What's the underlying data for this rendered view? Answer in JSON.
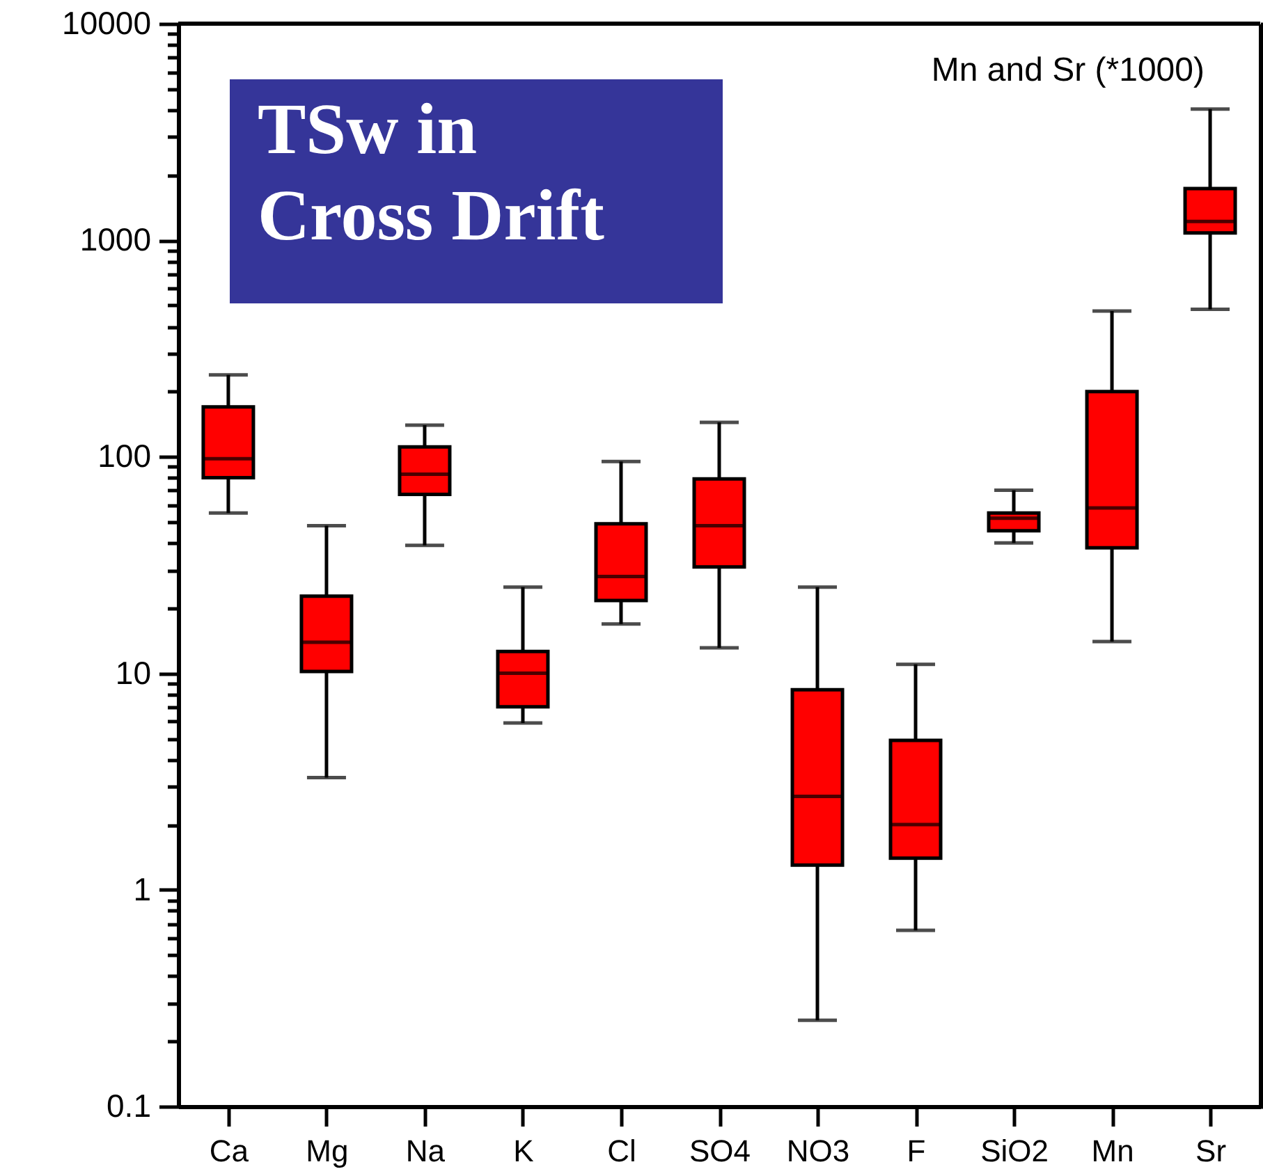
{
  "chart_data": {
    "type": "box",
    "categories": [
      "Ca",
      "Mg",
      "Na",
      "K",
      "Cl",
      "SO4",
      "NO3",
      "F",
      "SiO2",
      "Mn",
      "Sr"
    ],
    "series": [
      {
        "color": "#ff0000",
        "boxes": [
          {
            "low": 55,
            "q1": 80,
            "median": 98,
            "q3": 170,
            "high": 239
          },
          {
            "low": 3.3,
            "q1": 10.2,
            "median": 13.9,
            "q3": 22.7,
            "high": 48
          },
          {
            "low": 39,
            "q1": 67,
            "median": 83,
            "q3": 111,
            "high": 140
          },
          {
            "low": 5.9,
            "q1": 7,
            "median": 10,
            "q3": 12.6,
            "high": 25
          },
          {
            "low": 16.9,
            "q1": 21.7,
            "median": 28,
            "q3": 49,
            "high": 95
          },
          {
            "low": 13.1,
            "q1": 31,
            "median": 48,
            "q3": 79,
            "high": 144
          },
          {
            "low": 0.25,
            "q1": 1.3,
            "median": 2.7,
            "q3": 8.4,
            "high": 25
          },
          {
            "low": 0.65,
            "q1": 1.4,
            "median": 2,
            "q3": 4.9,
            "high": 11
          },
          {
            "low": 40,
            "q1": 45.5,
            "median": 52,
            "q3": 55,
            "high": 70
          },
          {
            "low": 14,
            "q1": 38,
            "median": 58,
            "q3": 200,
            "high": 471
          },
          {
            "low": 480,
            "q1": 1080,
            "median": 1220,
            "q3": 1730,
            "high": 4030
          }
        ]
      }
    ],
    "log": "y",
    "ylim": [
      0.1,
      10000
    ],
    "yticks": [
      0.1,
      {
        "value": 0.2,
        "label": null
      },
      {
        "value": 0.3,
        "label": null
      },
      {
        "value": 0.4,
        "label": null
      },
      {
        "value": 0.5,
        "label": null
      },
      {
        "value": 0.6,
        "label": null
      },
      {
        "value": 0.7,
        "label": null
      },
      {
        "value": 0.8,
        "label": null
      },
      {
        "value": 0.9,
        "label": null
      },
      1,
      {
        "value": 2,
        "label": null
      },
      {
        "value": 3,
        "label": null
      },
      {
        "value": 4,
        "label": null
      },
      {
        "value": 5,
        "label": null
      },
      {
        "value": 6,
        "label": null
      },
      {
        "value": 7,
        "label": null
      },
      {
        "value": 8,
        "label": null
      },
      {
        "value": 9,
        "label": null
      },
      10,
      {
        "value": 20,
        "label": null
      },
      {
        "value": 30,
        "label": null
      },
      {
        "value": 40,
        "label": null
      },
      {
        "value": 50,
        "label": null
      },
      {
        "value": 60,
        "label": null
      },
      {
        "value": 70,
        "label": null
      },
      {
        "value": 80,
        "label": null
      },
      {
        "value": 90,
        "label": null
      },
      100,
      {
        "value": 200,
        "label": null
      },
      {
        "value": 300,
        "label": null
      },
      {
        "value": 400,
        "label": null
      },
      {
        "value": 500,
        "label": null
      },
      {
        "value": 600,
        "label": null
      },
      {
        "value": 700,
        "label": null
      },
      {
        "value": 800,
        "label": null
      },
      {
        "value": 900,
        "label": null
      },
      1000,
      {
        "value": 2000,
        "label": null
      },
      {
        "value": 3000,
        "label": null
      },
      {
        "value": 4000,
        "label": null
      },
      {
        "value": 5000,
        "label": null
      },
      {
        "value": 6000,
        "label": null
      },
      {
        "value": 7000,
        "label": null
      },
      {
        "value": 8000,
        "label": null
      },
      {
        "value": 9000,
        "label": null
      },
      10000
    ],
    "grid": false,
    "annotations": [
      "Mn and Sr (*1000)",
      "TSw in\nCross Drift"
    ]
  }
}
